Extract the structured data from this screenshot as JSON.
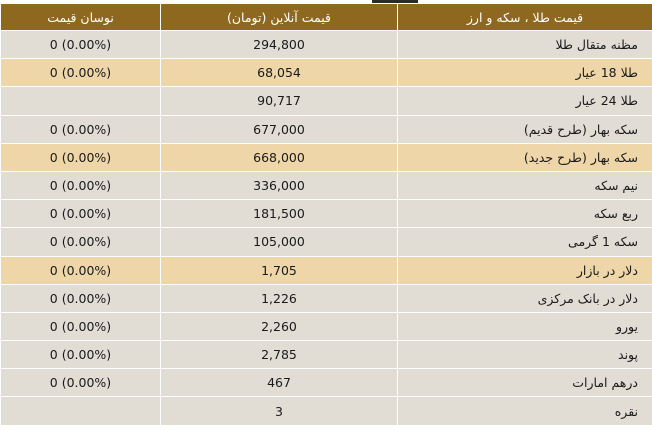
{
  "header": {
    "item": "قیمت طلا ، سکه و ارز",
    "price": "قیمت آنلاین (تومان)",
    "change": "نوسان قیمت"
  },
  "rows": [
    {
      "item": "مظنه متقال طلا",
      "price": "294,800",
      "change": "0 (0.00%)",
      "highlighted": false
    },
    {
      "item": "طلا 18 عیار",
      "price": "68,054",
      "change": "0 (0.00%)",
      "highlighted": true
    },
    {
      "item": "طلا 24 عیار",
      "price": "90,717",
      "change": "",
      "highlighted": false
    },
    {
      "item": "سکه بهار (طرح قدیم)",
      "price": "677,000",
      "change": "0 (0.00%)",
      "highlighted": false
    },
    {
      "item": "سکه بهار (طرح جدید)",
      "price": "668,000",
      "change": "0 (0.00%)",
      "highlighted": true
    },
    {
      "item": "نیم سکه",
      "price": "336,000",
      "change": "0 (0.00%)",
      "highlighted": false
    },
    {
      "item": "ربع سکه",
      "price": "181,500",
      "change": "0 (0.00%)",
      "highlighted": false
    },
    {
      "item": "سکه 1 گرمی",
      "price": "105,000",
      "change": "0 (0.00%)",
      "highlighted": false
    },
    {
      "item": "دلار در بازار",
      "price": "1,705",
      "change": "0 (0.00%)",
      "highlighted": true
    },
    {
      "item": "دلار در بانک مرکزی",
      "price": "1,226",
      "change": "0 (0.00%)",
      "highlighted": false
    },
    {
      "item": "یورو",
      "price": "2,260",
      "change": "0 (0.00%)",
      "highlighted": false
    },
    {
      "item": "پوند",
      "price": "2,785",
      "change": "0 (0.00%)",
      "highlighted": false
    },
    {
      "item": "درهم امارات",
      "price": "467",
      "change": "0 (0.00%)",
      "highlighted": false
    },
    {
      "item": "نقره",
      "price": "3",
      "change": "",
      "highlighted": false
    }
  ],
  "colors": {
    "header_bg": "#8f6820",
    "row_bg": "#e1ddd5",
    "highlight_bg": "#eed6a8"
  }
}
